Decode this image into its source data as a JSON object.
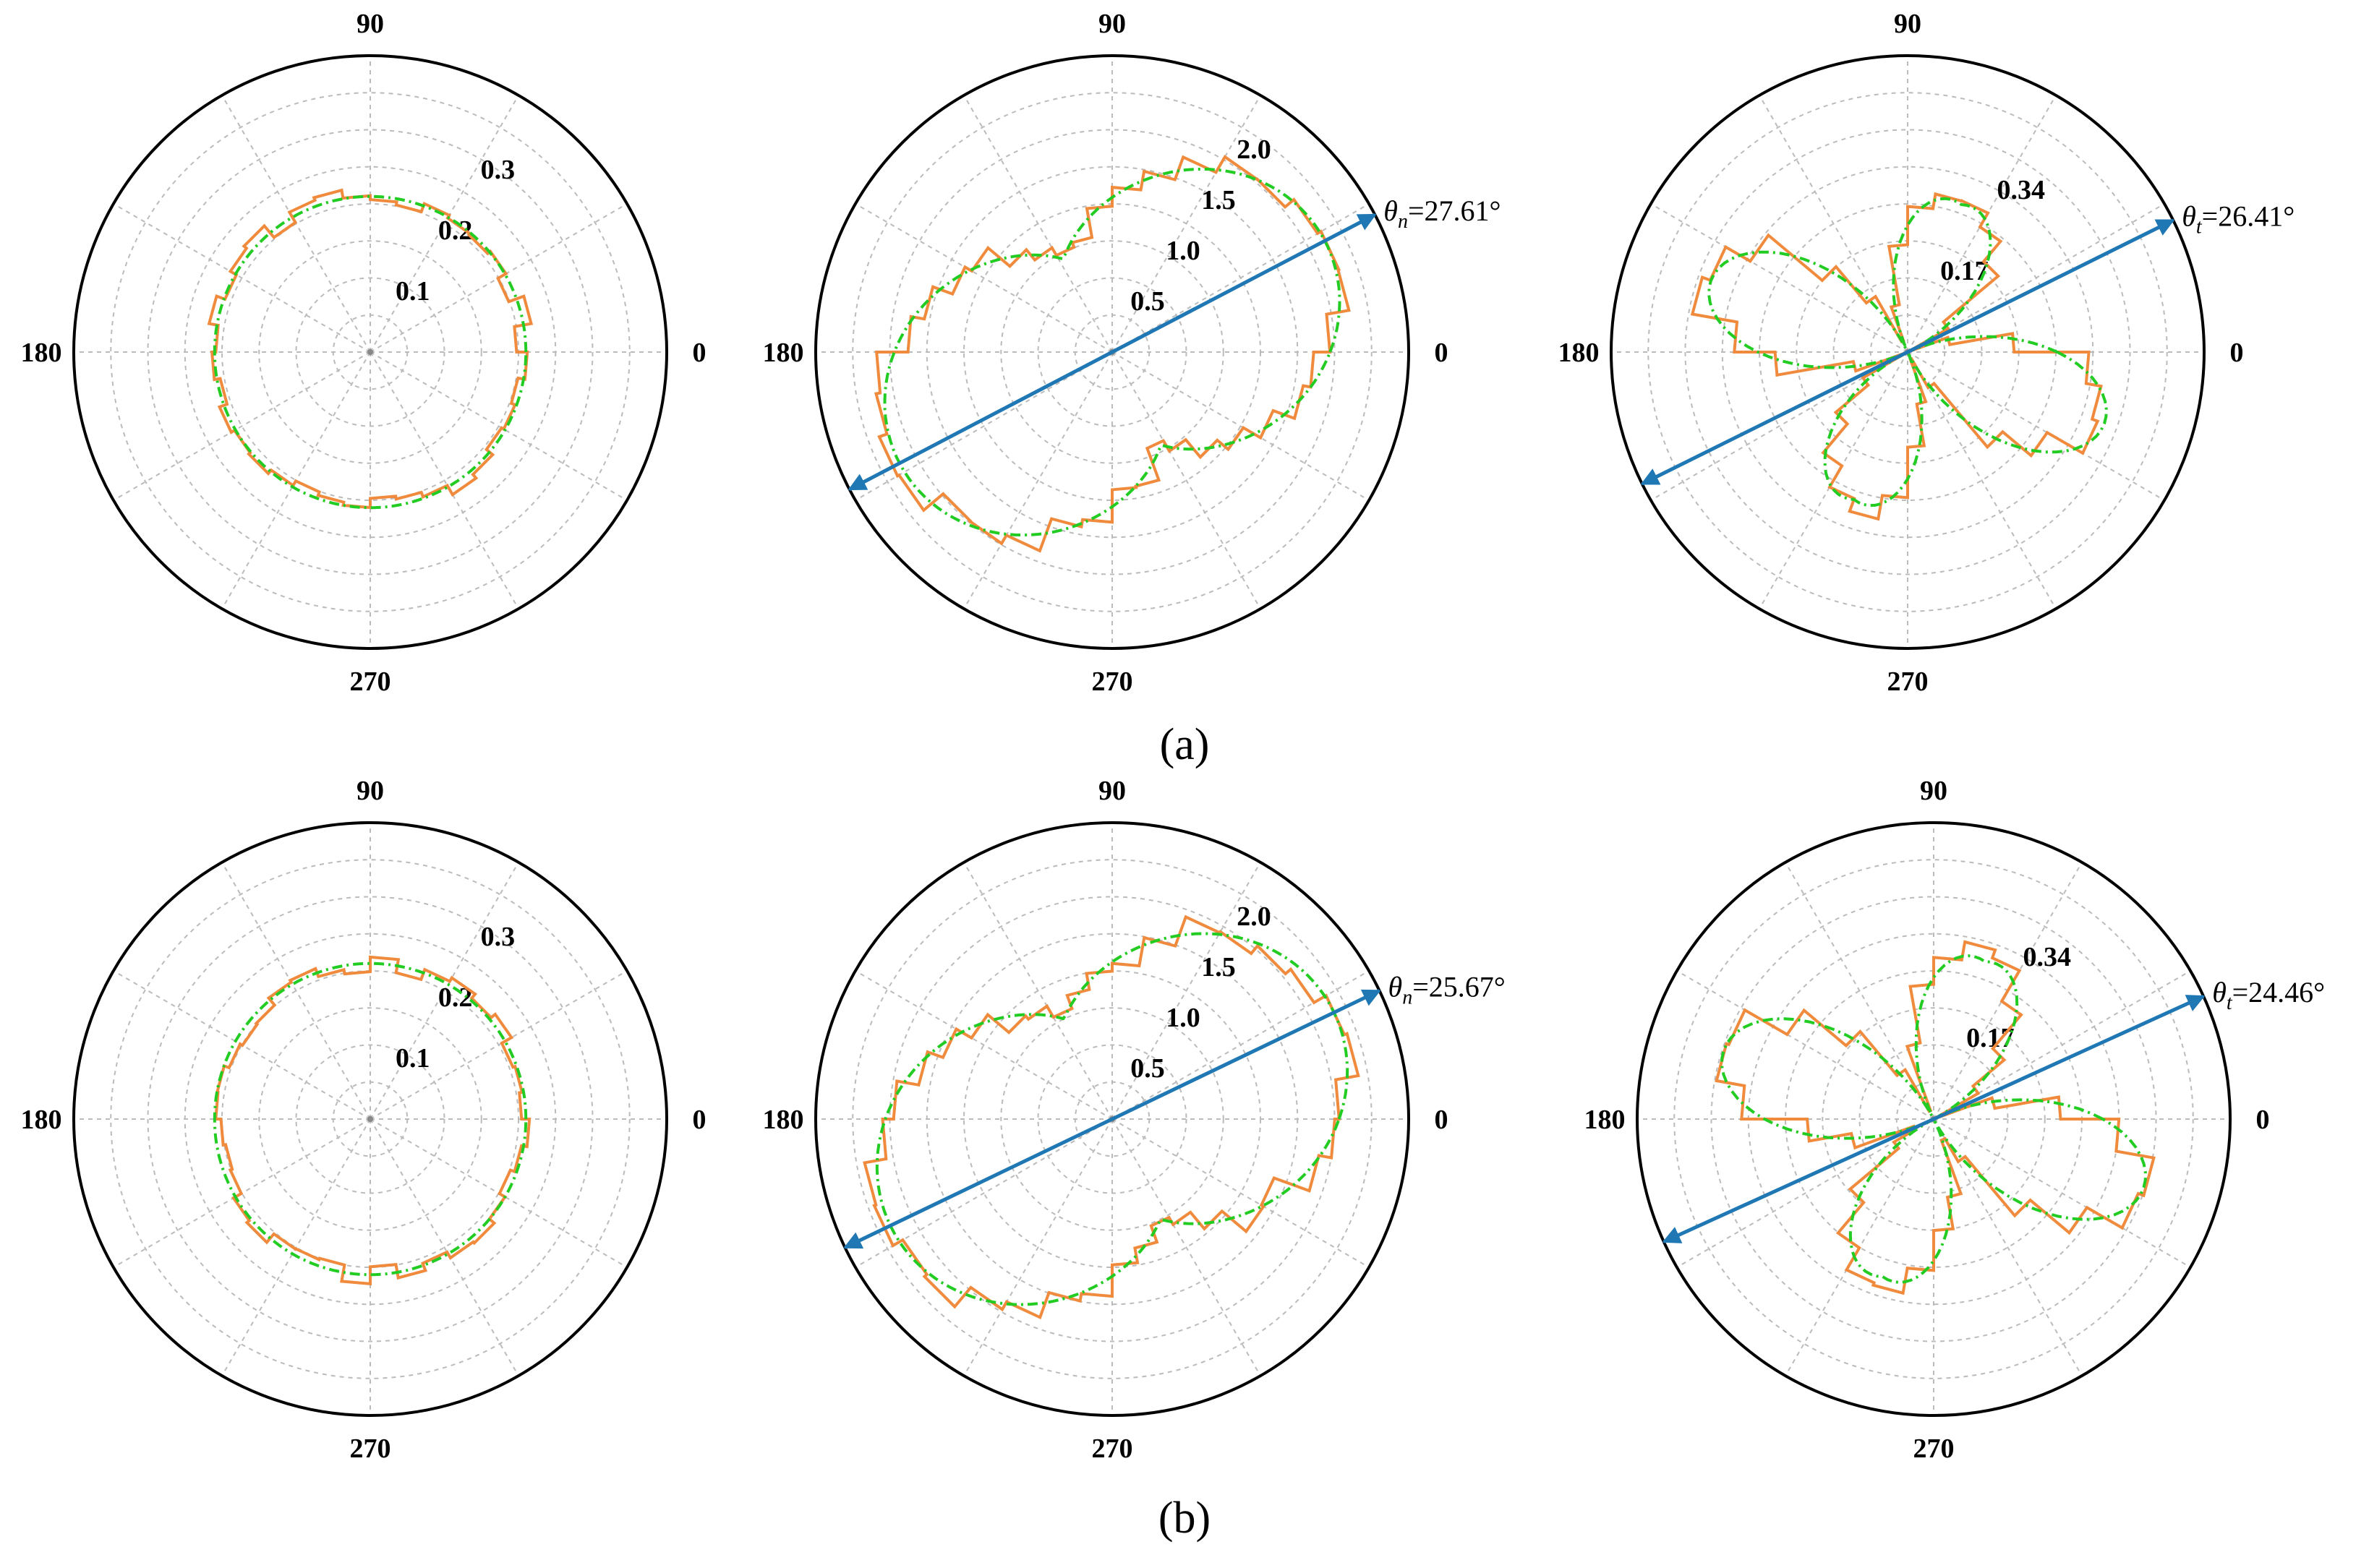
{
  "captions": {
    "a": "(a)",
    "b": "(b)"
  },
  "colors": {
    "raw": "#f08a3c",
    "fit": "#22cc22",
    "axis_line": "#1f77b4",
    "grid": "#bbbbbb"
  },
  "chart_data": [
    {
      "type": "polar",
      "row": "a",
      "angle_ticks": [
        "0",
        "90",
        "180",
        "270"
      ],
      "radial_ticks": [
        "0.1",
        "0.2",
        "0.3"
      ],
      "rmax": 0.4,
      "shape": "circle",
      "base": 0.21,
      "amp": 0,
      "lobes": 0,
      "phase_deg": 0,
      "annotation": null
    },
    {
      "type": "polar",
      "row": "a",
      "angle_ticks": [
        "0",
        "90",
        "180",
        "270"
      ],
      "radial_ticks": [
        "0.5",
        "1.0",
        "1.5",
        "2.0"
      ],
      "rmax": 2.4,
      "shape": "peanut",
      "base": 0.85,
      "amp": 0.95,
      "lobes": 2,
      "phase_deg": 27.61,
      "annotation": {
        "symbol": "θ",
        "subscript": "n",
        "value": "=27.61°",
        "angle_deg": 27.61
      }
    },
    {
      "type": "polar",
      "row": "a",
      "angle_ticks": [
        "0",
        "90",
        "180",
        "270"
      ],
      "radial_ticks": [
        "0.17",
        "0.34"
      ],
      "rmax": 0.51,
      "shape": "rose",
      "base": 0.0,
      "amp": 0.36,
      "lobes": 4,
      "phase_deg": -20,
      "annotation": {
        "symbol": "θ",
        "subscript": "t",
        "value": "=26.41°",
        "angle_deg": 26.41
      }
    },
    {
      "type": "polar",
      "row": "b",
      "angle_ticks": [
        "0",
        "90",
        "180",
        "270"
      ],
      "radial_ticks": [
        "0.1",
        "0.2",
        "0.3"
      ],
      "rmax": 0.4,
      "shape": "circle",
      "base": 0.21,
      "amp": 0,
      "lobes": 0,
      "phase_deg": 0,
      "annotation": null
    },
    {
      "type": "polar",
      "row": "b",
      "angle_ticks": [
        "0",
        "90",
        "180",
        "270"
      ],
      "radial_ticks": [
        "0.5",
        "1.0",
        "1.5",
        "2.0"
      ],
      "rmax": 2.4,
      "shape": "peanut",
      "base": 0.9,
      "amp": 0.95,
      "lobes": 2,
      "phase_deg": 25.67,
      "annotation": {
        "symbol": "θ",
        "subscript": "n",
        "value": "=25.67°",
        "angle_deg": 25.67
      }
    },
    {
      "type": "polar",
      "row": "b",
      "angle_ticks": [
        "0",
        "90",
        "180",
        "270"
      ],
      "radial_ticks": [
        "0.17",
        "0.34"
      ],
      "rmax": 0.51,
      "shape": "rose",
      "base": 0.0,
      "amp": 0.38,
      "lobes": 4,
      "phase_deg": -18,
      "annotation": {
        "symbol": "θ",
        "subscript": "t",
        "value": "=24.46°",
        "angle_deg": 24.46
      }
    }
  ]
}
